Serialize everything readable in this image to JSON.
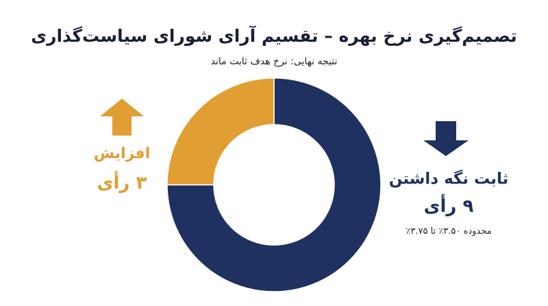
{
  "chart_data": {
    "type": "donut",
    "title": "تصمیم‌گیری نرخ بهره – تقسیم آرای شورای سیاست‌گذاری",
    "subtitle": "نتیجه نهایی: نرخ هدف ثابت ماند",
    "categories": [
      "ثابت نگه داشتن",
      "افزایش"
    ],
    "values": [
      9,
      3
    ],
    "value_labels": [
      "۹ رأی",
      "۳ رأی"
    ],
    "colors": [
      "#1f3160",
      "#e19e32"
    ],
    "annotation": "محدوده ۳.۵۰٪ تا ۳.۷۵٪"
  }
}
